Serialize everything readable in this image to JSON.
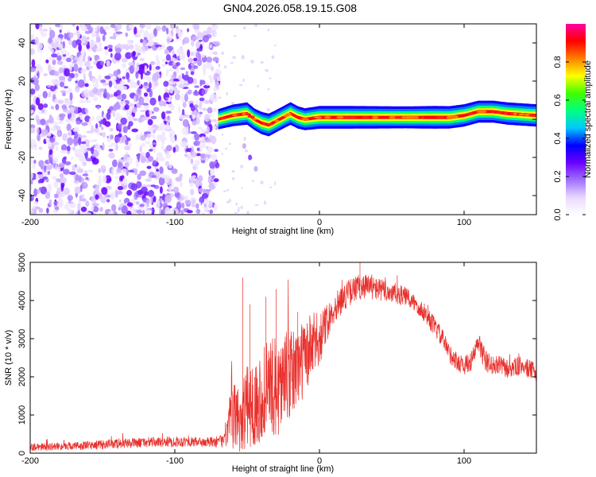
{
  "chart_data": [
    {
      "type": "heatmap",
      "title": "GN04.2026.058.19.15.G08",
      "xlabel": "Height of straight line (km)",
      "ylabel": "Frequency (Hz)",
      "xlim": [
        -200,
        150
      ],
      "ylim": [
        -50,
        50
      ],
      "xticks": [
        -200,
        -100,
        0,
        100
      ],
      "xtick_labels": [
        "-200",
        "-100",
        "0",
        "100"
      ],
      "yticks": [
        -40,
        -20,
        0,
        20,
        40
      ],
      "ytick_labels": [
        "-40",
        "-20",
        "0",
        "20",
        "40"
      ],
      "noise_region_x": [
        -200,
        -70
      ],
      "ridge": {
        "x": [
          -70,
          -60,
          -50,
          -45,
          -40,
          -35,
          -30,
          -25,
          -20,
          -15,
          -10,
          0,
          20,
          40,
          60,
          80,
          90,
          100,
          110,
          120,
          130,
          150
        ],
        "freq": [
          0,
          2,
          3,
          0,
          -2,
          -3,
          -1,
          1,
          3,
          1,
          0,
          1,
          1,
          1,
          1,
          1,
          1,
          2,
          4,
          4,
          3,
          2
        ],
        "amp": [
          0.6,
          0.8,
          0.9,
          0.8,
          0.9,
          0.95,
          0.9,
          0.9,
          0.95,
          0.9,
          0.85,
          0.95,
          0.95,
          0.9,
          0.85,
          0.95,
          0.9,
          0.9,
          0.85,
          0.85,
          0.9,
          0.9
        ]
      },
      "secondary_trace": {
        "x": [
          -52,
          -48,
          -44
        ],
        "freq": [
          -14,
          -20,
          -26
        ]
      },
      "colorbar": {
        "label": "Normalized spectral amplitude",
        "range": [
          0,
          1
        ],
        "ticks": [
          0.0,
          0.2,
          0.4,
          0.6,
          0.8
        ],
        "tick_labels": [
          "0.0",
          "0.2",
          "0.4",
          "0.6",
          "0.8"
        ],
        "stops": [
          "#ffffff",
          "#e8d8ff",
          "#a070ff",
          "#6a00ff",
          "#0000ff",
          "#00c8ff",
          "#00ff80",
          "#40ff00",
          "#ffff00",
          "#ff8000",
          "#ff0000",
          "#ff00a0"
        ]
      }
    },
    {
      "type": "line",
      "xlabel": "Height of straight line (km)",
      "ylabel": "SNR (10 * v/v)",
      "xlim": [
        -200,
        150
      ],
      "ylim": [
        0,
        5000
      ],
      "xticks": [
        -200,
        -100,
        0,
        100
      ],
      "xtick_labels": [
        "-200",
        "-100",
        "0",
        "100"
      ],
      "yticks": [
        0,
        1000,
        2000,
        3000,
        4000,
        5000
      ],
      "ytick_labels": [
        "0",
        "1000",
        "2000",
        "3000",
        "4000",
        "5000"
      ],
      "color": "#e8302c",
      "envelope": {
        "x": [
          -200,
          -180,
          -160,
          -140,
          -120,
          -100,
          -90,
          -80,
          -70,
          -65,
          -62,
          -58,
          -55,
          -50,
          -45,
          -40,
          -35,
          -30,
          -25,
          -20,
          -15,
          -10,
          -5,
          0,
          5,
          10,
          20,
          30,
          40,
          50,
          60,
          70,
          80,
          85,
          90,
          95,
          100,
          105,
          110,
          115,
          120,
          125,
          130,
          140,
          150
        ],
        "base": [
          150,
          180,
          200,
          250,
          280,
          300,
          300,
          280,
          300,
          350,
          800,
          1000,
          900,
          1200,
          1300,
          1500,
          1800,
          1700,
          1900,
          2000,
          2300,
          2500,
          2800,
          3000,
          3400,
          3800,
          4200,
          4400,
          4300,
          4200,
          4100,
          3800,
          3300,
          3000,
          2600,
          2400,
          2300,
          2400,
          2900,
          2400,
          2300,
          2300,
          2200,
          2300,
          2100
        ],
        "amp": [
          100,
          100,
          120,
          130,
          130,
          140,
          130,
          130,
          150,
          200,
          700,
          900,
          1000,
          1100,
          1100,
          1200,
          1300,
          1300,
          1300,
          1200,
          1100,
          1000,
          900,
          700,
          500,
          400,
          350,
          350,
          300,
          300,
          250,
          250,
          250,
          250,
          250,
          250,
          250,
          250,
          300,
          300,
          250,
          250,
          250,
          250,
          250
        ]
      },
      "spikes": [
        {
          "x": -53,
          "y": 4600
        },
        {
          "x": -48,
          "y": 3900
        },
        {
          "x": -37,
          "y": 4100
        },
        {
          "x": -30,
          "y": 4300
        },
        {
          "x": -15,
          "y": 3700
        },
        {
          "x": 28,
          "y": 5000
        }
      ]
    }
  ]
}
